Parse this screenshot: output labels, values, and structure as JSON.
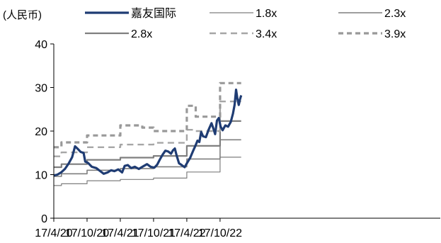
{
  "chart_data": {
    "type": "line",
    "title": "",
    "unit_label": "(人民币)",
    "xlabel": "",
    "ylabel": "",
    "ylim": [
      0,
      40
    ],
    "yticks": [
      0,
      10,
      20,
      30,
      40
    ],
    "x_range": [
      "2017-04-20",
      "2023-02-15"
    ],
    "xticks": [
      {
        "date": "2017-04-20",
        "label": "17/4/20"
      },
      {
        "date": "2017-10-20",
        "label": "17/10/20"
      },
      {
        "date": "2018-04-21",
        "label": "17/4/21"
      },
      {
        "date": "2018-10-21",
        "label": "17/10/21"
      },
      {
        "date": "2019-04-22",
        "label": "17/4/22"
      },
      {
        "date": "2019-10-22",
        "label": "17/10/22"
      }
    ],
    "grid": false,
    "legend_position": "top",
    "series": [
      {
        "name": "嘉友国际",
        "style": "solid-thick",
        "color": "#1f3c73",
        "points": [
          [
            "2017-04-20",
            9.8
          ],
          [
            "2017-05-10",
            10.0
          ],
          [
            "2017-05-30",
            10.5
          ],
          [
            "2017-06-20",
            11.3
          ],
          [
            "2017-07-10",
            12.5
          ],
          [
            "2017-07-30",
            14.0
          ],
          [
            "2017-08-15",
            16.5
          ],
          [
            "2017-08-30",
            15.9
          ],
          [
            "2017-09-15",
            15.2
          ],
          [
            "2017-10-01",
            15.0
          ],
          [
            "2017-10-10",
            13.0
          ],
          [
            "2017-10-25",
            12.7
          ],
          [
            "2017-11-15",
            11.8
          ],
          [
            "2017-12-10",
            11.5
          ],
          [
            "2018-01-01",
            10.8
          ],
          [
            "2018-01-20",
            10.2
          ],
          [
            "2018-02-10",
            10.5
          ],
          [
            "2018-03-01",
            11.0
          ],
          [
            "2018-03-20",
            10.8
          ],
          [
            "2018-04-10",
            11.2
          ],
          [
            "2018-05-01",
            10.5
          ],
          [
            "2018-05-15",
            12.0
          ],
          [
            "2018-06-01",
            12.2
          ],
          [
            "2018-06-20",
            11.5
          ],
          [
            "2018-07-10",
            11.8
          ],
          [
            "2018-08-01",
            11.3
          ],
          [
            "2018-08-25",
            11.9
          ],
          [
            "2018-09-15",
            12.4
          ],
          [
            "2018-10-05",
            11.8
          ],
          [
            "2018-10-25",
            11.6
          ],
          [
            "2018-11-10",
            12.3
          ],
          [
            "2018-11-25",
            13.5
          ],
          [
            "2018-12-10",
            14.6
          ],
          [
            "2018-12-25",
            15.5
          ],
          [
            "2019-01-10",
            15.3
          ],
          [
            "2019-01-25",
            14.8
          ],
          [
            "2019-02-05",
            15.6
          ],
          [
            "2019-02-15",
            16.0
          ],
          [
            "2019-02-25",
            14.4
          ],
          [
            "2019-03-10",
            12.6
          ],
          [
            "2019-03-25",
            12.2
          ],
          [
            "2019-04-10",
            11.7
          ],
          [
            "2019-04-25",
            12.8
          ],
          [
            "2019-05-10",
            13.8
          ],
          [
            "2019-05-25",
            15.3
          ],
          [
            "2019-06-10",
            16.8
          ],
          [
            "2019-06-20",
            17.8
          ],
          [
            "2019-06-30",
            17.5
          ],
          [
            "2019-07-10",
            19.8
          ],
          [
            "2019-07-20",
            18.8
          ],
          [
            "2019-08-05",
            18.6
          ],
          [
            "2019-08-20",
            20.3
          ],
          [
            "2019-09-05",
            21.8
          ],
          [
            "2019-09-15",
            20.6
          ],
          [
            "2019-09-25",
            19.3
          ],
          [
            "2019-10-05",
            22.4
          ],
          [
            "2019-10-15",
            23.0
          ],
          [
            "2019-10-25",
            21.0
          ],
          [
            "2019-11-05",
            20.2
          ],
          [
            "2019-11-20",
            21.3
          ],
          [
            "2019-12-05",
            21.0
          ],
          [
            "2019-12-20",
            22.1
          ],
          [
            "2020-01-01",
            24.0
          ],
          [
            "2020-01-10",
            26.0
          ],
          [
            "2020-01-18",
            29.5
          ],
          [
            "2020-01-25",
            27.5
          ],
          [
            "2020-02-02",
            26.0
          ],
          [
            "2020-02-08",
            27.2
          ],
          [
            "2020-02-15",
            28.2
          ]
        ]
      },
      {
        "name": "1.8x",
        "style": "solid-thin",
        "color": "#7f7f7f",
        "points": [
          [
            "2017-04-20",
            7.5
          ],
          [
            "2017-06-01",
            7.5
          ],
          [
            "2017-06-01",
            7.9
          ],
          [
            "2017-10-20",
            7.9
          ],
          [
            "2017-10-20",
            8.6
          ],
          [
            "2018-04-21",
            8.6
          ],
          [
            "2018-04-21",
            8.9
          ],
          [
            "2018-10-21",
            8.9
          ],
          [
            "2018-10-21",
            9.2
          ],
          [
            "2019-04-22",
            9.2
          ],
          [
            "2019-04-22",
            10.6
          ],
          [
            "2019-10-22",
            10.6
          ],
          [
            "2019-10-22",
            14.0
          ],
          [
            "2020-02-15",
            14.0
          ]
        ]
      },
      {
        "name": "2.3x",
        "style": "solid-medium",
        "color": "#7f7f7f",
        "points": [
          [
            "2017-04-20",
            9.6
          ],
          [
            "2017-06-01",
            9.6
          ],
          [
            "2017-06-01",
            10.2
          ],
          [
            "2017-10-20",
            10.2
          ],
          [
            "2017-10-20",
            11.0
          ],
          [
            "2018-04-21",
            11.0
          ],
          [
            "2018-04-21",
            11.4
          ],
          [
            "2018-10-21",
            11.4
          ],
          [
            "2018-10-21",
            11.8
          ],
          [
            "2019-04-22",
            11.8
          ],
          [
            "2019-04-22",
            13.6
          ],
          [
            "2019-10-22",
            13.6
          ],
          [
            "2019-10-22",
            18.0
          ],
          [
            "2020-02-15",
            18.0
          ]
        ]
      },
      {
        "name": "2.8x",
        "style": "solid-thick-gray",
        "color": "#7f7f7f",
        "points": [
          [
            "2017-04-20",
            11.7
          ],
          [
            "2017-06-01",
            11.7
          ],
          [
            "2017-06-01",
            12.4
          ],
          [
            "2017-10-20",
            12.4
          ],
          [
            "2017-10-20",
            13.4
          ],
          [
            "2018-04-21",
            13.4
          ],
          [
            "2018-04-21",
            13.9
          ],
          [
            "2018-10-21",
            13.9
          ],
          [
            "2018-10-21",
            14.3
          ],
          [
            "2019-04-22",
            14.3
          ],
          [
            "2019-04-22",
            16.6
          ],
          [
            "2019-10-22",
            16.6
          ],
          [
            "2019-10-22",
            22.3
          ],
          [
            "2020-02-15",
            22.3
          ]
        ]
      },
      {
        "name": "3.4x",
        "style": "dash",
        "color": "#a6a6a6",
        "points": [
          [
            "2017-04-20",
            14.2
          ],
          [
            "2017-06-01",
            14.2
          ],
          [
            "2017-06-01",
            15.1
          ],
          [
            "2017-10-20",
            15.1
          ],
          [
            "2017-10-20",
            16.3
          ],
          [
            "2018-04-21",
            16.3
          ],
          [
            "2018-04-21",
            16.9
          ],
          [
            "2018-10-21",
            16.9
          ],
          [
            "2018-10-21",
            17.3
          ],
          [
            "2019-04-22",
            17.3
          ],
          [
            "2019-04-22",
            20.3
          ],
          [
            "2019-06-10",
            20.3
          ],
          [
            "2019-06-10",
            20.0
          ],
          [
            "2019-10-22",
            20.0
          ],
          [
            "2019-10-22",
            26.8
          ],
          [
            "2020-02-15",
            26.8
          ]
        ]
      },
      {
        "name": "3.9x",
        "style": "dash-thick",
        "color": "#999999",
        "points": [
          [
            "2017-04-20",
            16.3
          ],
          [
            "2017-06-01",
            16.3
          ],
          [
            "2017-06-01",
            17.4
          ],
          [
            "2017-10-20",
            17.4
          ],
          [
            "2017-10-20",
            19.0
          ],
          [
            "2018-04-21",
            19.0
          ],
          [
            "2018-04-21",
            21.3
          ],
          [
            "2018-08-20",
            21.3
          ],
          [
            "2018-08-20",
            20.8
          ],
          [
            "2018-10-21",
            20.8
          ],
          [
            "2018-10-21",
            20.0
          ],
          [
            "2019-04-22",
            20.0
          ],
          [
            "2019-04-22",
            25.8
          ],
          [
            "2019-06-10",
            25.8
          ],
          [
            "2019-06-10",
            23.3
          ],
          [
            "2019-10-22",
            23.3
          ],
          [
            "2019-10-22",
            31.0
          ],
          [
            "2020-02-15",
            31.0
          ]
        ]
      }
    ]
  }
}
